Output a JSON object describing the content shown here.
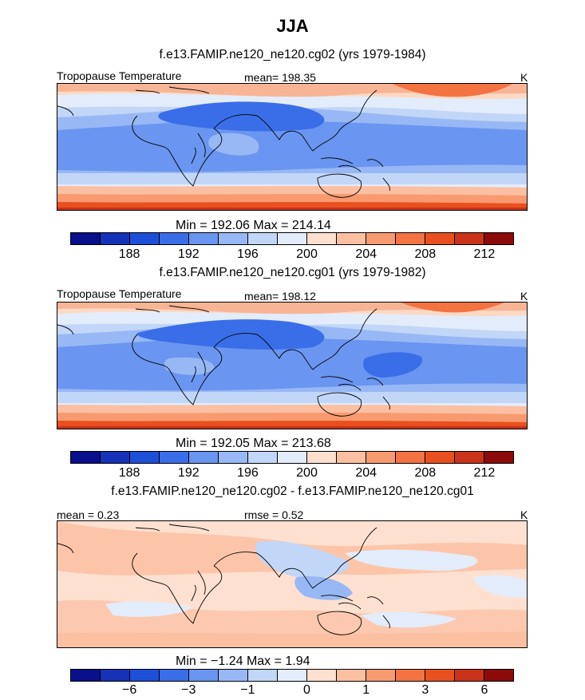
{
  "figure": {
    "title": "JJA",
    "panels": [
      {
        "subtitle": "f.e13.FAMIP.ne120_ne120.cg02 (yrs 1979-1984)",
        "left_label": "Tropopause Temperature",
        "center_label": "mean= 198.35",
        "units": "K",
        "minmax": "Min = 192.06 Max = 214.14",
        "colorbar_ticks": [
          "188",
          "192",
          "196",
          "200",
          "204",
          "208",
          "212"
        ],
        "colors": [
          "#0a0f8c",
          "#1532b8",
          "#1e4fd8",
          "#3a6ee8",
          "#6a95f0",
          "#98b8f5",
          "#c2d6f7",
          "#e3ecfa",
          "#fde0d0",
          "#fbbfa2",
          "#f89a70",
          "#f37343",
          "#e9501f",
          "#c8331a",
          "#8c0a0a"
        ]
      },
      {
        "subtitle": "f.e13.FAMIP.ne120_ne120.cg01 (yrs 1979-1982)",
        "left_label": "Tropopause Temperature",
        "center_label": "mean= 198.12",
        "units": "K",
        "minmax": "Min = 192.05 Max = 213.68",
        "colorbar_ticks": [
          "188",
          "192",
          "196",
          "200",
          "204",
          "208",
          "212"
        ]
      },
      {
        "subtitle": "f.e13.FAMIP.ne120_ne120.cg02 - f.e13.FAMIP.ne120_ne120.cg01",
        "left_label": "mean =   0.23",
        "center_label": "rmse =   0.52",
        "units": "K",
        "minmax": "Min =  −1.24 Max =   1.94",
        "colorbar_ticks": [
          "−6",
          "−3",
          "−1",
          "0",
          "1",
          "3",
          "6"
        ]
      }
    ]
  },
  "chart_data": [
    {
      "type": "heatmap",
      "title": "f.e13.FAMIP.ne120_ne120.cg02 (yrs 1979-1984)",
      "variable": "Tropopause Temperature",
      "units": "K",
      "mean": 198.35,
      "min": 192.06,
      "max": 214.14,
      "colorbar_ticks": [
        188,
        192,
        196,
        200,
        204,
        208,
        212
      ]
    },
    {
      "type": "heatmap",
      "title": "f.e13.FAMIP.ne120_ne120.cg01 (yrs 1979-1982)",
      "variable": "Tropopause Temperature",
      "units": "K",
      "mean": 198.12,
      "min": 192.05,
      "max": 213.68,
      "colorbar_ticks": [
        188,
        192,
        196,
        200,
        204,
        208,
        212
      ]
    },
    {
      "type": "heatmap",
      "title": "f.e13.FAMIP.ne120_ne120.cg02 - f.e13.FAMIP.ne120_ne120.cg01",
      "units": "K",
      "mean": 0.23,
      "rmse": 0.52,
      "min": -1.24,
      "max": 1.94,
      "colorbar_ticks": [
        -6,
        -3,
        -1,
        0,
        1,
        3,
        6
      ]
    }
  ]
}
